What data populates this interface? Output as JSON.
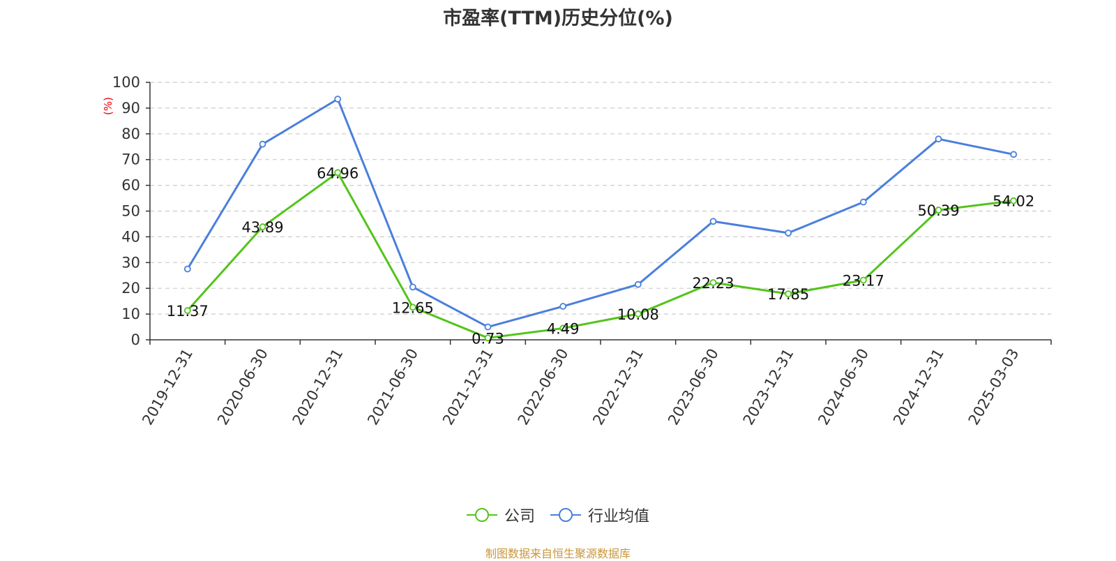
{
  "title": "市盈率(TTM)历史分位(%)",
  "source": "制图数据来自恒生聚源数据库",
  "chart_data": {
    "type": "line",
    "title": "市盈率(TTM)历史分位(%)",
    "ylabel": "(%)",
    "ylim": [
      0,
      100
    ],
    "yticks": [
      0,
      10,
      20,
      30,
      40,
      50,
      60,
      70,
      80,
      90,
      100
    ],
    "grid": true,
    "legend_position": "bottom",
    "categories": [
      "2019-12-31",
      "2020-06-30",
      "2020-12-31",
      "2021-06-30",
      "2021-12-31",
      "2022-06-30",
      "2022-12-31",
      "2023-06-30",
      "2023-12-31",
      "2024-06-30",
      "2024-12-31",
      "2025-03-03"
    ],
    "series": [
      {
        "name": "公司",
        "color": "#52c41a",
        "values": [
          11.37,
          43.89,
          64.96,
          12.65,
          0.73,
          4.49,
          10.08,
          22.23,
          17.85,
          23.17,
          50.39,
          54.02
        ],
        "labels": [
          "11.37",
          "43.89",
          "64.96",
          "12.65",
          "0.73",
          "4.49",
          "10.08",
          "22.23",
          "17.85",
          "23.17",
          "50.39",
          "54.02"
        ]
      },
      {
        "name": "行业均值",
        "color": "#4a7fdc",
        "values": [
          27.5,
          76.0,
          93.5,
          20.5,
          5.0,
          13.0,
          21.5,
          46.0,
          41.5,
          53.5,
          78.0,
          72.0
        ]
      }
    ]
  }
}
